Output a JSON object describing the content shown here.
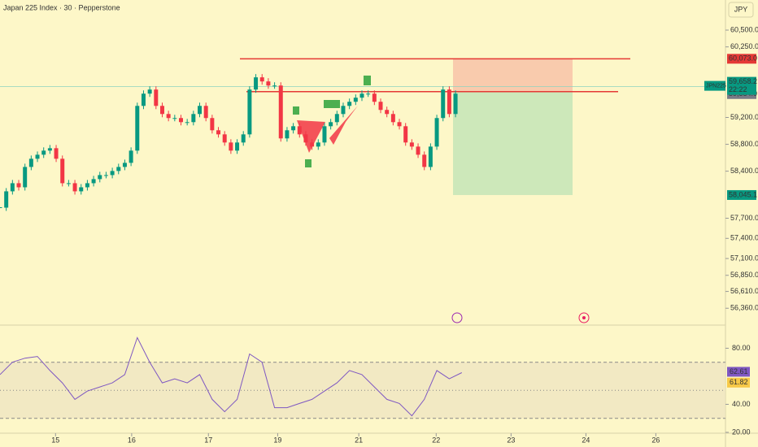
{
  "chart_data": {
    "type": "candlestick",
    "title": "Japan 225 Index · 30 · Pepperstone",
    "currency": "JPY",
    "symbol": "JPN225",
    "values": [
      57857,
      58100,
      58221,
      58160,
      58463,
      58585,
      58645,
      58706,
      58742,
      58585,
      58221,
      58221,
      58100,
      58160,
      58221,
      58282,
      58342,
      58342,
      58403,
      58463,
      58524,
      58706,
      59372,
      59554,
      59615,
      59372,
      59251,
      59191,
      59191,
      59130,
      59130,
      59251,
      59372,
      59191,
      59009,
      58948,
      58827,
      58706,
      58827,
      58948,
      59615,
      59797,
      59736,
      59675,
      59675,
      58888,
      59009,
      59069,
      58948,
      58827,
      58766,
      58827,
      59069,
      59130,
      59251,
      59372,
      59433,
      59494,
      59554,
      59554,
      59433,
      59312,
      59251,
      59130,
      59069,
      58827,
      58766,
      58645,
      58463,
      58766,
      59191,
      59615,
      59251,
      59554
    ],
    "up_color": "#089981",
    "down_color": "#f23645",
    "xlim": [
      0,
      116
    ],
    "xticks": [
      {
        "value": 8.9,
        "label": "15"
      },
      {
        "value": 21.1,
        "label": "16"
      },
      {
        "value": 33.4,
        "label": "17"
      },
      {
        "value": 44.5,
        "label": "19"
      },
      {
        "value": 57.5,
        "label": "21"
      },
      {
        "value": 69.9,
        "label": "22"
      },
      {
        "value": 81.9,
        "label": "23"
      },
      {
        "value": 93.9,
        "label": "24"
      },
      {
        "value": 105.1,
        "label": "26"
      }
    ],
    "ylim": [
      56109,
      60948
    ],
    "yticks": [
      {
        "value": 60500,
        "label": "60,500.0"
      },
      {
        "value": 60250,
        "label": "60,250.0"
      },
      {
        "value": 59200,
        "label": "59,200.0"
      },
      {
        "value": 58800,
        "label": "58,800.0"
      },
      {
        "value": 58400,
        "label": "58,400.0"
      },
      {
        "value": 57700,
        "label": "57,700.0"
      },
      {
        "value": 57400,
        "label": "57,400.0"
      },
      {
        "value": 57100,
        "label": "57,100.0"
      },
      {
        "value": 56850,
        "label": "56,850.0"
      },
      {
        "value": 56610,
        "label": "56,610.0"
      },
      {
        "value": 56360,
        "label": "56,360.0"
      }
    ],
    "last": {
      "value": 59658.2,
      "label": "59,658.2",
      "time": "22:22"
    },
    "position": {
      "stop": {
        "value": 60073,
        "label": "60,073.0"
      },
      "entry": {
        "value": 59584,
        "label": "59,584.0"
      },
      "target": {
        "value": 58045.1,
        "label": "58,045.1"
      }
    },
    "rsi": {
      "type": "line",
      "values": [
        61.2,
        70,
        72.9,
        74.1,
        64.1,
        55.3,
        43.5,
        49.4,
        52.4,
        55.3,
        61.2,
        87.6,
        70,
        55.3,
        58.2,
        55.3,
        61.2,
        43.5,
        34.7,
        43.5,
        75.9,
        70,
        37.6,
        37.6,
        40.6,
        43.5,
        49.4,
        55.3,
        64.1,
        61.2,
        52.4,
        43.5,
        40.6,
        31.8,
        43.5,
        64.1,
        58.2,
        62.6
      ],
      "color": "#7e57c2",
      "ylim": [
        19.4,
        96.5
      ],
      "yticks": [
        {
          "value": 80,
          "label": "80.00"
        },
        {
          "value": 40,
          "label": "40.00"
        },
        {
          "value": 20,
          "label": "20.00"
        }
      ],
      "bands": [
        70,
        50,
        30
      ],
      "last": {
        "value": 62.61,
        "label": "62.61"
      },
      "ma": {
        "value": 61.82,
        "label": "61.82",
        "color": "#f7c948"
      }
    }
  }
}
